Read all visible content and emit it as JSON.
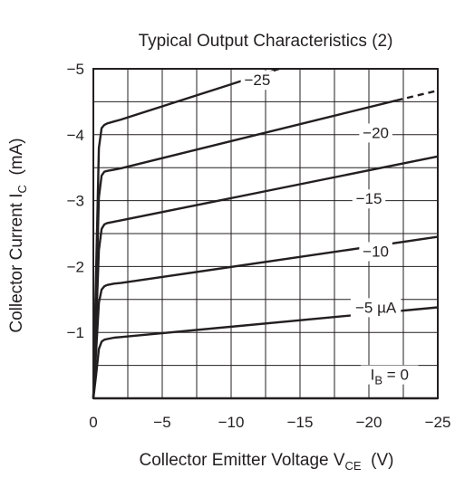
{
  "chart_data": {
    "type": "line",
    "title": "Typical Output Characteristics (2)",
    "xlabel": {
      "main": "Collector Emitter Voltage  V",
      "sub": "CE",
      "unit": "  (V)"
    },
    "ylabel": {
      "main": "Collector Current  I",
      "sub": "C",
      "unit": "  (mA)"
    },
    "xlim": [
      0,
      -25
    ],
    "ylim": [
      0,
      -5
    ],
    "x_ticks": [
      0,
      -5,
      -10,
      -15,
      -20,
      -25
    ],
    "y_ticks": [
      -1,
      -2,
      -3,
      -4,
      -5
    ],
    "x_tick_labels": [
      "0",
      "−5",
      "−10",
      "−15",
      "−20",
      "−25"
    ],
    "y_tick_labels": [
      "−1",
      "−2",
      "−3",
      "−4",
      "−5"
    ],
    "grid": true,
    "series": [
      {
        "label": "I",
        "label_sub": "B",
        "label_suffix": " = 0",
        "label_at": [
          -21.5,
          -0.28
        ],
        "x": [
          0,
          -25
        ],
        "y": [
          0,
          0
        ]
      },
      {
        "label": "−5 µA",
        "label_at": [
          -20.5,
          -1.3
        ],
        "x": [
          0,
          -0.2,
          -0.4,
          -0.6,
          -0.8,
          -1,
          -1.5,
          -2,
          -25
        ],
        "y": [
          0,
          -0.35,
          -0.75,
          -0.86,
          -0.89,
          -0.9,
          -0.92,
          -0.93,
          -1.38
        ]
      },
      {
        "label": "−10",
        "label_at": [
          -20.5,
          -2.15
        ],
        "x": [
          0,
          -0.2,
          -0.4,
          -0.6,
          -0.8,
          -1,
          -1.5,
          -2,
          -25
        ],
        "y": [
          0,
          -0.7,
          -1.45,
          -1.65,
          -1.7,
          -1.72,
          -1.74,
          -1.75,
          -2.45
        ]
      },
      {
        "label": "−15",
        "label_at": [
          -20.0,
          -2.95
        ],
        "x": [
          0,
          -0.2,
          -0.4,
          -0.6,
          -0.8,
          -1,
          -1.5,
          -2,
          -25
        ],
        "y": [
          0,
          -1.1,
          -2.25,
          -2.57,
          -2.64,
          -2.66,
          -2.68,
          -2.7,
          -3.67
        ]
      },
      {
        "label": "−20",
        "label_at": [
          -20.5,
          -3.95
        ],
        "x": [
          0,
          -0.2,
          -0.4,
          -0.6,
          -0.8,
          -1,
          -1.5,
          -2,
          -22
        ],
        "y": [
          0,
          -1.5,
          -3.05,
          -3.38,
          -3.44,
          -3.45,
          -3.47,
          -3.49,
          -4.52
        ]
      },
      {
        "label": "−20",
        "x": [
          -22,
          -25
        ],
        "y": [
          -4.52,
          -4.67
        ],
        "dashed": true
      },
      {
        "label": "−25",
        "label_at": [
          -11.9,
          -4.75
        ],
        "x": [
          0,
          -0.2,
          -0.4,
          -0.6,
          -0.8,
          -1,
          -1.5,
          -2,
          -13.5
        ],
        "y": [
          0,
          -1.9,
          -3.8,
          -4.1,
          -4.15,
          -4.17,
          -4.2,
          -4.23,
          -5.0
        ]
      }
    ]
  }
}
